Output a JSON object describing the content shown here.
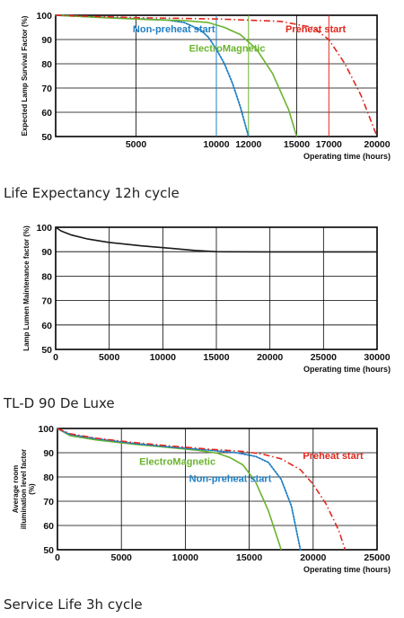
{
  "captions": {
    "chart1": "Life Expectancy 12h cycle",
    "chart2": "TL-D 90 De Luxe",
    "chart3": "Service Life 3h cycle"
  },
  "colors": {
    "non_preheat": "#1f7fc4",
    "electromagnetic": "#6ab42d",
    "preheat": "#e0281e",
    "lumen": "#1a1a1a",
    "grid": "#000000"
  },
  "chart_data": [
    {
      "type": "line",
      "ylabel": "Expected Lamp Survival Factor (%)",
      "xlabel": "Operating time (hours)",
      "xlim": [
        0,
        20000
      ],
      "ylim": [
        50,
        100
      ],
      "x_ticks": [
        0,
        5000,
        10000,
        15000,
        20000
      ],
      "x_tick_labels": [
        "",
        "5000",
        "10000",
        "15000",
        "20000"
      ],
      "x_extra_ticks": [
        12000,
        17000
      ],
      "x_extra_tick_labels": [
        "12000",
        "17000"
      ],
      "y_ticks": [
        50,
        60,
        70,
        80,
        90,
        100
      ],
      "markers": [
        {
          "x": 10000,
          "series": "non_preheat"
        },
        {
          "x": 12000,
          "series": "electromagnetic"
        },
        {
          "x": 17000,
          "series": "preheat"
        }
      ],
      "series": [
        {
          "name": "Non-preheat start",
          "key": "non_preheat",
          "style": "dotted",
          "label_at": [
            4800,
            93
          ],
          "x": [
            0,
            2000,
            5000,
            7000,
            8000,
            9000,
            9500,
            10000,
            10500,
            11000,
            11500,
            12000
          ],
          "y": [
            100,
            99.4,
            98.6,
            98,
            97,
            94,
            91,
            86,
            80,
            72,
            62,
            50
          ]
        },
        {
          "name": "ElectroMagnetic",
          "key": "electromagnetic",
          "style": "solid",
          "label_at": [
            8300,
            85
          ],
          "x": [
            0,
            3000,
            6000,
            8000,
            9500,
            10500,
            11500,
            12500,
            13500,
            14500,
            15000
          ],
          "y": [
            100,
            99,
            98.2,
            97.8,
            97,
            95,
            92,
            86,
            76,
            61,
            50
          ]
        },
        {
          "name": "Preheat start",
          "key": "preheat",
          "style": "dashdot",
          "label_at": [
            14300,
            93
          ],
          "x": [
            0,
            5000,
            10000,
            14000,
            16000,
            17000,
            18000,
            19000,
            20000
          ],
          "y": [
            100,
            99,
            98.5,
            97.5,
            95,
            90,
            80,
            67,
            50
          ]
        }
      ]
    },
    {
      "type": "line",
      "ylabel": "Lamp Lumen Maintenance factor (%)",
      "xlabel": "Operating time (hours)",
      "xlim": [
        0,
        30000
      ],
      "ylim": [
        50,
        100
      ],
      "x_ticks": [
        0,
        5000,
        10000,
        15000,
        20000,
        25000,
        30000
      ],
      "x_tick_labels": [
        "0",
        "5000",
        "10000",
        "15000",
        "20000",
        "25000",
        "30000"
      ],
      "y_ticks": [
        50,
        60,
        70,
        80,
        90,
        100
      ],
      "series": [
        {
          "key": "lumen",
          "style": "solid",
          "x": [
            0,
            500,
            1500,
            3000,
            5000,
            8000,
            11000,
            13000,
            15000,
            20000,
            25000,
            30000
          ],
          "y": [
            100,
            98.5,
            96.8,
            95.2,
            93.8,
            92.4,
            91.3,
            90.5,
            90,
            89.9,
            89.9,
            89.9
          ]
        }
      ]
    },
    {
      "type": "line",
      "ylabel": "Average room illumination level factor (%)",
      "xlabel": "Operating time (hours)",
      "xlim": [
        0,
        25000
      ],
      "ylim": [
        50,
        100
      ],
      "x_ticks": [
        0,
        5000,
        10000,
        15000,
        20000,
        25000
      ],
      "x_tick_labels": [
        "0",
        "5000",
        "10000",
        "15000",
        "20000",
        "25000"
      ],
      "y_ticks": [
        50,
        60,
        70,
        80,
        90,
        100
      ],
      "series": [
        {
          "name": "ElectroMagnetic",
          "key": "electromagnetic",
          "style": "solid",
          "label_at": [
            6400,
            85
          ],
          "x": [
            0,
            1000,
            3000,
            6000,
            9000,
            11000,
            12500,
            13500,
            14500,
            15500,
            16500,
            17500
          ],
          "y": [
            100,
            97,
            95.3,
            93.5,
            92,
            91,
            89.8,
            88,
            85,
            78,
            66,
            50
          ]
        },
        {
          "name": "Non-preheat start",
          "key": "non_preheat",
          "style": "dotted",
          "label_at": [
            10300,
            78
          ],
          "x": [
            0,
            1000,
            3000,
            6000,
            9000,
            12000,
            14000,
            15500,
            16500,
            17500,
            18300,
            19000
          ],
          "y": [
            100,
            97.5,
            95.8,
            93.8,
            92.3,
            91,
            90,
            88.5,
            86,
            79,
            68,
            50
          ]
        },
        {
          "name": "Preheat start",
          "key": "preheat",
          "style": "dashdot",
          "label_at": [
            19200,
            87.5
          ],
          "x": [
            0,
            1000,
            3000,
            6000,
            9000,
            12000,
            14500,
            16000,
            17500,
            19000,
            20000,
            21000,
            22000,
            22500
          ],
          "y": [
            100,
            97.8,
            96,
            94.2,
            92.7,
            91.4,
            90.5,
            89.5,
            87.5,
            83,
            77,
            69,
            58,
            50
          ]
        }
      ]
    }
  ]
}
